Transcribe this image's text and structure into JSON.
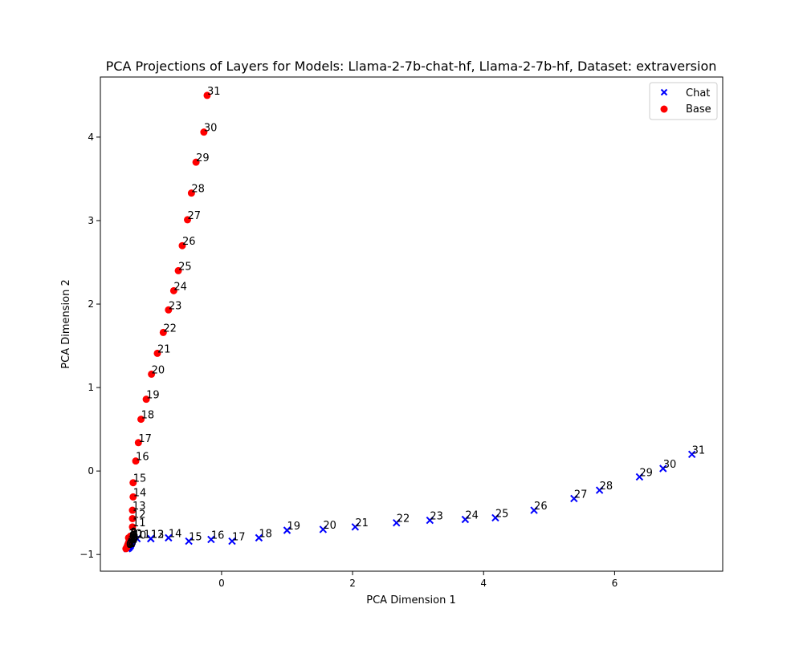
{
  "chart_data": {
    "type": "scatter",
    "title": "PCA Projections of Layers for Models: Llama-2-7b-chat-hf, Llama-2-7b-hf, Dataset: extraversion",
    "xlabel": "PCA Dimension 1",
    "ylabel": "PCA Dimension 2",
    "xlim": [
      -1.85,
      7.65
    ],
    "ylim": [
      -1.2,
      4.72
    ],
    "xticks": [
      0,
      2,
      4,
      6
    ],
    "yticks": [
      -1,
      0,
      1,
      2,
      3,
      4
    ],
    "xtick_labels": [
      "0",
      "2",
      "4",
      "6"
    ],
    "ytick_labels": [
      "−1",
      "0",
      "1",
      "2",
      "3",
      "4"
    ],
    "grid": false,
    "legend_position": "top-right",
    "series": [
      {
        "name": "Chat",
        "marker": "x",
        "color": "#0000ff",
        "labels": [
          "0",
          "1",
          "2",
          "3",
          "4",
          "5",
          "6",
          "7",
          "8",
          "9",
          "10",
          "11",
          "12",
          "13",
          "14",
          "15",
          "16",
          "17",
          "18",
          "19",
          "20",
          "21",
          "22",
          "23",
          "24",
          "25",
          "26",
          "27",
          "28",
          "29",
          "30",
          "31"
        ],
        "x": [
          -1.44,
          -1.42,
          -1.41,
          -1.4,
          -1.39,
          -1.39,
          -1.38,
          -1.38,
          -1.37,
          -1.37,
          -1.35,
          -1.29,
          -1.08,
          -1.08,
          -0.81,
          -0.5,
          -0.16,
          0.16,
          0.57,
          1.0,
          1.55,
          2.04,
          2.67,
          3.18,
          3.72,
          4.18,
          4.77,
          5.38,
          5.77,
          6.38,
          6.74,
          7.18
        ],
        "y": [
          -0.93,
          -0.92,
          -0.91,
          -0.9,
          -0.89,
          -0.88,
          -0.87,
          -0.86,
          -0.85,
          -0.84,
          -0.82,
          -0.81,
          -0.81,
          -0.81,
          -0.8,
          -0.84,
          -0.82,
          -0.84,
          -0.8,
          -0.71,
          -0.7,
          -0.67,
          -0.62,
          -0.59,
          -0.58,
          -0.56,
          -0.47,
          -0.33,
          -0.23,
          -0.07,
          0.03,
          0.2
        ]
      },
      {
        "name": "Base",
        "marker": "o",
        "color": "#ff0000",
        "labels": [
          "0",
          "1",
          "2",
          "3",
          "4",
          "5",
          "6",
          "7",
          "8",
          "9",
          "10",
          "11",
          "12",
          "13",
          "14",
          "15",
          "16",
          "17",
          "18",
          "19",
          "20",
          "21",
          "22",
          "23",
          "24",
          "25",
          "26",
          "27",
          "28",
          "29",
          "30",
          "31"
        ],
        "x": [
          -1.46,
          -1.45,
          -1.44,
          -1.43,
          -1.42,
          -1.41,
          -1.41,
          -1.4,
          -1.39,
          -1.39,
          -1.42,
          -1.36,
          -1.36,
          -1.36,
          -1.35,
          -1.35,
          -1.31,
          -1.27,
          -1.23,
          -1.15,
          -1.07,
          -0.98,
          -0.89,
          -0.81,
          -0.73,
          -0.66,
          -0.6,
          -0.52,
          -0.46,
          -0.39,
          -0.27,
          -0.22
        ],
        "y": [
          -0.93,
          -0.92,
          -0.9,
          -0.88,
          -0.86,
          -0.84,
          -0.82,
          -0.8,
          -0.79,
          -0.78,
          -0.8,
          -0.67,
          -0.57,
          -0.47,
          -0.31,
          -0.14,
          0.12,
          0.34,
          0.62,
          0.86,
          1.16,
          1.41,
          1.66,
          1.93,
          2.16,
          2.4,
          2.7,
          3.01,
          3.33,
          3.7,
          4.06,
          4.5
        ]
      }
    ]
  }
}
